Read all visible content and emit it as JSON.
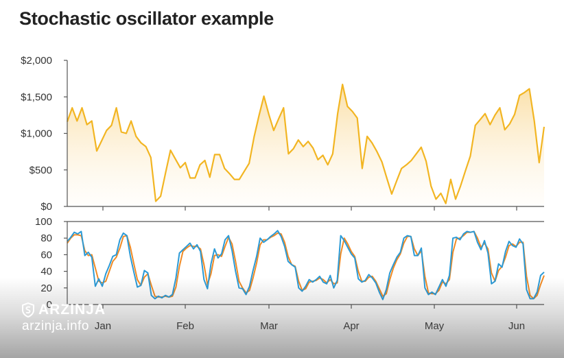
{
  "title": "Stochastic oscillator example",
  "watermark": {
    "brand": "ARZINJA",
    "site": "arzinja.info"
  },
  "colors": {
    "price": "#f2b522",
    "percent_k": "#2b9ad6",
    "percent_d": "#f08a24",
    "axis": "#555555"
  },
  "chart_data": [
    {
      "type": "area",
      "x_ticks": [
        "Jan",
        "Feb",
        "Mar",
        "Apr",
        "May",
        "Jun"
      ],
      "y_ticks": [
        "$0",
        "$500",
        "$1,000",
        "$1,500",
        "$2,000"
      ],
      "ylim": [
        0,
        2000
      ],
      "grid": false,
      "series": [
        {
          "values": [
            1160,
            1350,
            1170,
            1350,
            1120,
            1170,
            760,
            900,
            1040,
            1110,
            1350,
            1020,
            1000,
            1170,
            960,
            870,
            820,
            670,
            70,
            140,
            460,
            770,
            650,
            530,
            600,
            390,
            390,
            570,
            630,
            400,
            710,
            710,
            520,
            450,
            370,
            370,
            480,
            590,
            950,
            1240,
            1510,
            1260,
            1040,
            1200,
            1350,
            720,
            790,
            910,
            820,
            890,
            800,
            640,
            700,
            570,
            720,
            1270,
            1670,
            1370,
            1300,
            1210,
            520,
            960,
            870,
            750,
            610,
            390,
            170,
            350,
            520,
            570,
            630,
            720,
            810,
            620,
            280,
            100,
            180,
            40,
            370,
            100,
            280,
            490,
            690,
            1110,
            1190,
            1270,
            1120,
            1250,
            1350,
            1050,
            1130,
            1260,
            1520,
            1560,
            1610,
            1170,
            600,
            1090
          ]
        }
      ]
    },
    {
      "type": "line",
      "x_ticks": [
        "Jan",
        "Feb",
        "Mar",
        "Apr",
        "May",
        "Jun"
      ],
      "y_ticks": [
        "0",
        "20",
        "40",
        "60",
        "80",
        "100"
      ],
      "ylim": [
        0,
        100
      ],
      "grid": false,
      "series": [
        {
          "values": [
            76,
            81,
            87,
            85,
            88,
            59,
            63,
            57,
            22,
            31,
            22,
            37,
            47,
            58,
            60,
            78,
            86,
            83,
            58,
            39,
            21,
            23,
            41,
            38,
            11,
            7,
            10,
            8,
            11,
            9,
            12,
            32,
            62,
            66,
            70,
            74,
            67,
            72,
            64,
            30,
            19,
            49,
            67,
            56,
            61,
            78,
            83,
            65,
            40,
            20,
            19,
            12,
            22,
            41,
            58,
            80,
            75,
            78,
            82,
            85,
            89,
            82,
            70,
            52,
            48,
            45,
            20,
            16,
            22,
            30,
            27,
            30,
            34,
            27,
            25,
            35,
            20,
            29,
            83,
            77,
            69,
            61,
            56,
            31,
            27,
            29,
            36,
            32,
            26,
            15,
            6,
            18,
            38,
            48,
            57,
            63,
            80,
            83,
            82,
            59,
            59,
            68,
            20,
            12,
            15,
            12,
            21,
            30,
            22,
            35,
            80,
            81,
            78,
            85,
            88,
            87,
            88,
            75,
            66,
            77,
            62,
            25,
            28,
            49,
            45,
            64,
            76,
            71,
            69,
            79,
            73,
            18,
            7,
            7,
            15,
            35,
            39
          ]
        },
        {
          "values": [
            74,
            80,
            84,
            84,
            83,
            65,
            59,
            60,
            44,
            28,
            26,
            28,
            40,
            52,
            57,
            68,
            82,
            83,
            69,
            49,
            30,
            23,
            33,
            37,
            23,
            10,
            9,
            9,
            10,
            9,
            10,
            21,
            46,
            64,
            68,
            71,
            70,
            70,
            67,
            48,
            24,
            37,
            59,
            60,
            58,
            70,
            81,
            73,
            52,
            28,
            20,
            14,
            17,
            32,
            50,
            72,
            78,
            78,
            81,
            83,
            86,
            85,
            75,
            58,
            48,
            46,
            28,
            17,
            19,
            27,
            28,
            29,
            32,
            30,
            26,
            30,
            25,
            26,
            61,
            80,
            73,
            64,
            58,
            40,
            28,
            28,
            33,
            34,
            28,
            19,
            10,
            13,
            30,
            44,
            54,
            61,
            74,
            82,
            82,
            67,
            59,
            65,
            34,
            14,
            13,
            13,
            17,
            27,
            25,
            30,
            63,
            79,
            80,
            83,
            87,
            87,
            88,
            80,
            69,
            74,
            67,
            38,
            28,
            41,
            46,
            57,
            71,
            73,
            70,
            75,
            75,
            34,
            11,
            7,
            11,
            24,
            35
          ]
        }
      ]
    }
  ]
}
